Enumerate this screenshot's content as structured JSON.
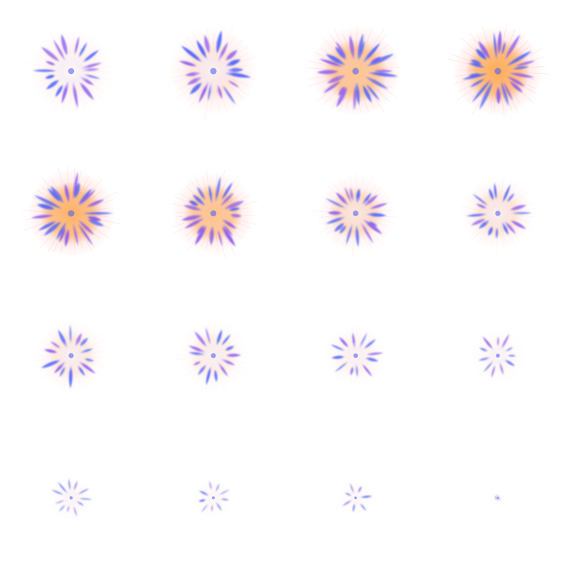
{
  "spritesheet": {
    "grid": {
      "columns": 4,
      "rows": 4
    },
    "palette": {
      "background": "#ffffff",
      "petal_blue": "#4f63ff",
      "petal_violet": "#8a5cf0",
      "core_orange": "#ffa53a",
      "glow_red": "#ff5a4a",
      "core_white": "#fffaf5"
    },
    "frames": [
      {
        "frame": 1,
        "scale": 0.92,
        "glow": 0.25,
        "orange": 0.05,
        "white": 0.95,
        "spikes": 18,
        "seed": 3
      },
      {
        "frame": 2,
        "scale": 0.98,
        "glow": 0.45,
        "orange": 0.15,
        "white": 0.85,
        "spikes": 18,
        "seed": 7
      },
      {
        "frame": 3,
        "scale": 1.0,
        "glow": 0.75,
        "orange": 0.75,
        "white": 0.35,
        "spikes": 22,
        "seed": 11
      },
      {
        "frame": 4,
        "scale": 1.0,
        "glow": 0.85,
        "orange": 0.95,
        "white": 0.1,
        "spikes": 22,
        "seed": 13
      },
      {
        "frame": 5,
        "scale": 0.98,
        "glow": 0.8,
        "orange": 0.9,
        "white": 0.15,
        "spikes": 22,
        "seed": 17
      },
      {
        "frame": 6,
        "scale": 0.92,
        "glow": 0.65,
        "orange": 0.75,
        "white": 0.3,
        "spikes": 20,
        "seed": 19
      },
      {
        "frame": 7,
        "scale": 0.85,
        "glow": 0.45,
        "orange": 0.4,
        "white": 0.7,
        "spikes": 18,
        "seed": 23
      },
      {
        "frame": 8,
        "scale": 0.8,
        "glow": 0.35,
        "orange": 0.25,
        "white": 0.8,
        "spikes": 16,
        "seed": 29
      },
      {
        "frame": 9,
        "scale": 0.78,
        "glow": 0.25,
        "orange": 0.2,
        "white": 0.8,
        "spikes": 14,
        "seed": 31
      },
      {
        "frame": 10,
        "scale": 0.76,
        "glow": 0.2,
        "orange": 0.15,
        "white": 0.75,
        "spikes": 14,
        "seed": 37
      },
      {
        "frame": 11,
        "scale": 0.68,
        "glow": 0.15,
        "orange": 0.08,
        "white": 0.7,
        "spikes": 12,
        "seed": 41
      },
      {
        "frame": 12,
        "scale": 0.6,
        "glow": 0.1,
        "orange": 0.05,
        "white": 0.7,
        "spikes": 11,
        "seed": 43
      },
      {
        "frame": 13,
        "scale": 0.5,
        "glow": 0.08,
        "orange": 0.04,
        "white": 0.55,
        "spikes": 11,
        "seed": 47
      },
      {
        "frame": 14,
        "scale": 0.45,
        "glow": 0.06,
        "orange": 0.03,
        "white": 0.45,
        "spikes": 9,
        "seed": 53
      },
      {
        "frame": 15,
        "scale": 0.4,
        "glow": 0.05,
        "orange": 0.02,
        "white": 0.35,
        "spikes": 7,
        "seed": 59
      },
      {
        "frame": 16,
        "scale": 0.08,
        "glow": 0.03,
        "orange": 0.0,
        "white": 0.3,
        "spikes": 6,
        "seed": 61
      }
    ]
  }
}
